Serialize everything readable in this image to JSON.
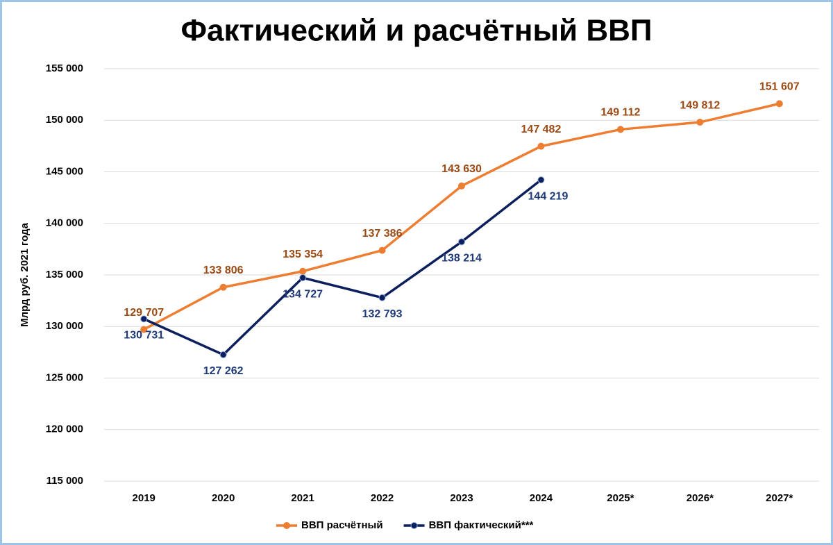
{
  "chart_data": {
    "type": "line",
    "title": "Фактический и расчётный ВВП",
    "y_label": "Млрд руб. 2021 года",
    "categories": [
      "2019",
      "2020",
      "2021",
      "2022",
      "2023",
      "2024",
      "2025*",
      "2026*",
      "2027*"
    ],
    "series": [
      {
        "name": "ВВП расчётный",
        "color": "#ED7D31",
        "label_color": "#9C4A14",
        "values": [
          129707,
          133806,
          135354,
          137386,
          143630,
          147482,
          149112,
          149812,
          151607
        ],
        "value_labels": [
          "129 707",
          "133 806",
          "135 354",
          "137 386",
          "143 630",
          "147 482",
          "149 112",
          "149 812",
          "151 607"
        ]
      },
      {
        "name": "ВВП фактический***",
        "color": "#0B1F5C",
        "label_color": "#1F3A78",
        "values": [
          130731,
          127262,
          134727,
          132793,
          138214,
          144219,
          null,
          null,
          null
        ],
        "value_labels": [
          "130 731",
          "127 262",
          "134 727",
          "132 793",
          "138 214",
          "144 219",
          null,
          null,
          null
        ]
      }
    ],
    "ylim": [
      115000,
      155000
    ],
    "yticks": [
      {
        "value": 115000,
        "label": "115 000"
      },
      {
        "value": 120000,
        "label": "120 000"
      },
      {
        "value": 125000,
        "label": "125 000"
      },
      {
        "value": 130000,
        "label": "130 000"
      },
      {
        "value": 135000,
        "label": "135 000"
      },
      {
        "value": 140000,
        "label": "140 000"
      },
      {
        "value": 145000,
        "label": "145 000"
      },
      {
        "value": 150000,
        "label": "150 000"
      },
      {
        "value": 155000,
        "label": "155 000"
      }
    ],
    "grid": true,
    "legend": "bottom"
  }
}
